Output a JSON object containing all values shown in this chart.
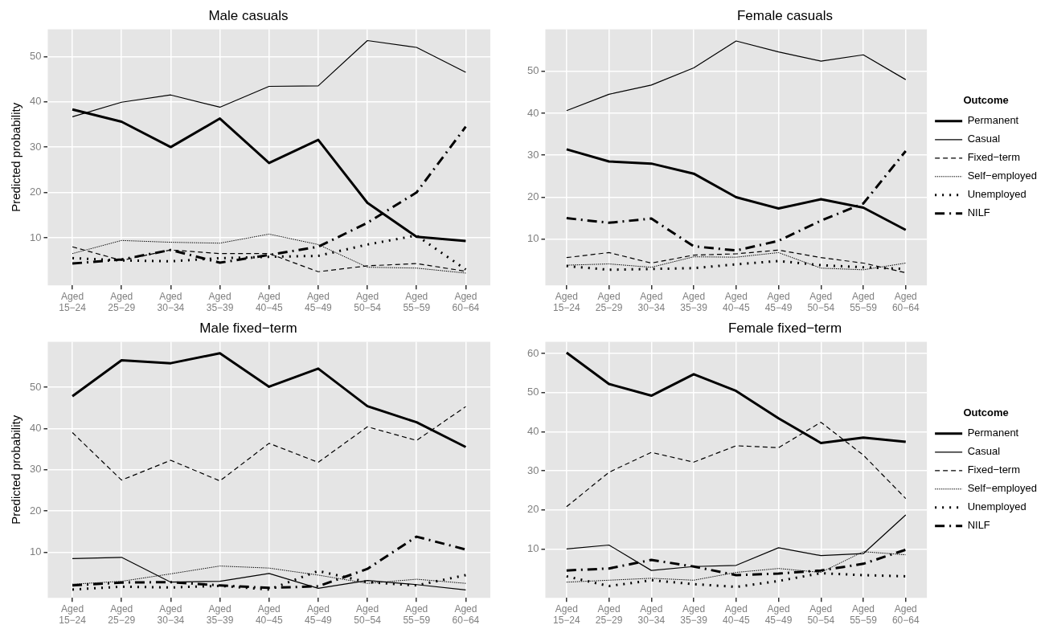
{
  "chart_data": [
    {
      "type": "line",
      "title": "Male casuals",
      "ylabel": "Predicted probability",
      "categories": [
        "Aged\n15−24",
        "Aged\n25−29",
        "Aged\n30−34",
        "Aged\n35−39",
        "Aged\n40−45",
        "Aged\n45−49",
        "Aged\n50−54",
        "Aged\n55−59",
        "Aged\n60−64"
      ],
      "ylim": [
        -0.5,
        56
      ],
      "yticks": [
        10,
        20,
        30,
        40,
        50
      ],
      "grid": true,
      "legend": false,
      "series": [
        {
          "color": "#000000",
          "line_style": "solid",
          "values": [
            38.3,
            35.6,
            30,
            36.3,
            26.5,
            31.6,
            17.7,
            10.2,
            9.3
          ]
        },
        {
          "color": "#000000",
          "line_style": "solid",
          "values": [
            36.7,
            39.9,
            41.5,
            38.8,
            43.4,
            43.5,
            53.5,
            52,
            46.5
          ]
        },
        {
          "color": "#000000",
          "line_style": "dashed",
          "values": [
            8,
            5,
            7.3,
            6.5,
            6.5,
            2.5,
            3.8,
            4.3,
            2.6
          ]
        },
        {
          "color": "#000000",
          "line_style": "dotted",
          "values": [
            6.5,
            9.4,
            9,
            8.8,
            10.8,
            8.5,
            3.5,
            3.3,
            2.2
          ]
        },
        {
          "color": "#000000",
          "line_style": "dotted",
          "values": [
            5.5,
            5,
            4.8,
            5.5,
            5.8,
            6,
            8.5,
            10.5,
            3
          ]
        },
        {
          "color": "#000000",
          "line_style": "dashdot",
          "values": [
            4.3,
            5.2,
            7.3,
            4.5,
            6.2,
            8,
            13.3,
            20,
            34.5
          ]
        }
      ]
    },
    {
      "type": "line",
      "title": "Female casuals",
      "legend_title": "Outcome",
      "categories": [
        "Aged\n15−24",
        "Aged\n25−29",
        "Aged\n30−34",
        "Aged\n35−39",
        "Aged\n40−45",
        "Aged\n45−49",
        "Aged\n50−54",
        "Aged\n55−59",
        "Aged\n60−64"
      ],
      "ylim": [
        -1,
        60
      ],
      "yticks": [
        10,
        20,
        30,
        40,
        50
      ],
      "grid": true,
      "legend": "right",
      "series": [
        {
          "name": "Permanent",
          "color": "#000000",
          "line_style": "solid",
          "values": [
            31.4,
            28.5,
            28,
            25.6,
            20,
            17.3,
            19.5,
            17.5,
            12.2
          ]
        },
        {
          "name": "Casual",
          "color": "#000000",
          "line_style": "solid",
          "values": [
            40.6,
            44.5,
            46.7,
            50.8,
            57.2,
            54.6,
            52.4,
            53.9,
            48
          ]
        },
        {
          "name": "Fixed−term",
          "color": "#000000",
          "line_style": "dashed",
          "values": [
            5.6,
            6.8,
            4.3,
            6.2,
            6.5,
            7.4,
            5.6,
            4.3,
            2
          ]
        },
        {
          "name": "Self−employed",
          "color": "#000000",
          "line_style": "dotted",
          "values": [
            3.8,
            4.1,
            3.3,
            5.8,
            5.7,
            6.8,
            3.1,
            2.7,
            4.3
          ]
        },
        {
          "name": "Unemployed",
          "color": "#000000",
          "line_style": "dotted",
          "values": [
            3.6,
            2.7,
            2.9,
            3.1,
            4,
            4.8,
            3.8,
            3.3,
            2.9
          ]
        },
        {
          "name": "NILF",
          "color": "#000000",
          "line_style": "dashdot",
          "values": [
            15,
            13.9,
            14.9,
            8.3,
            7.3,
            9.6,
            14.4,
            18.5,
            31
          ]
        }
      ]
    },
    {
      "type": "line",
      "title": "Male fixed−term",
      "ylabel": "Predicted probability",
      "categories": [
        "Aged\n15−24",
        "Aged\n25−29",
        "Aged\n30−34",
        "Aged\n35−39",
        "Aged\n40−45",
        "Aged\n45−49",
        "Aged\n50−54",
        "Aged\n55−59",
        "Aged\n60−64"
      ],
      "ylim": [
        -1,
        61
      ],
      "yticks": [
        10,
        20,
        30,
        40,
        50
      ],
      "grid": true,
      "legend": false,
      "series": [
        {
          "color": "#000000",
          "line_style": "solid",
          "values": [
            47.8,
            56.5,
            55.8,
            58.2,
            50.1,
            54.5,
            45.4,
            41.5,
            35.5
          ]
        },
        {
          "color": "#000000",
          "line_style": "solid",
          "values": [
            8.5,
            8.8,
            2.8,
            3,
            4.9,
            1.3,
            3.2,
            2.2,
            0.9
          ]
        },
        {
          "color": "#000000",
          "line_style": "dashed",
          "values": [
            39,
            27.5,
            32.3,
            27.3,
            36.4,
            31.8,
            40.4,
            37.1,
            45.3
          ]
        },
        {
          "color": "#000000",
          "line_style": "dotted",
          "values": [
            2.3,
            3,
            4.8,
            6.7,
            6.2,
            4.5,
            2.5,
            3.5,
            2.5
          ]
        },
        {
          "color": "#000000",
          "line_style": "dotted",
          "values": [
            1,
            1.7,
            1.5,
            1.9,
            1,
            5.5,
            2.8,
            2,
            4.5
          ]
        },
        {
          "color": "#000000",
          "line_style": "dashdot",
          "values": [
            2,
            2.7,
            2.8,
            2,
            1.4,
            1.8,
            6,
            13.8,
            10.7
          ]
        }
      ]
    },
    {
      "type": "line",
      "title": "Female fixed−term",
      "legend_title": "Outcome",
      "categories": [
        "Aged\n15−24",
        "Aged\n25−29",
        "Aged\n30−34",
        "Aged\n35−39",
        "Aged\n40−45",
        "Aged\n45−49",
        "Aged\n50−54",
        "Aged\n55−59",
        "Aged\n60−64"
      ],
      "ylim": [
        -2.5,
        63
      ],
      "yticks": [
        10,
        20,
        30,
        40,
        50,
        60
      ],
      "grid": true,
      "legend": "right",
      "series": [
        {
          "name": "Permanent",
          "color": "#000000",
          "line_style": "solid",
          "values": [
            60.2,
            52.2,
            49.2,
            54.7,
            50.4,
            43.4,
            37.1,
            38.5,
            37.4
          ]
        },
        {
          "name": "Casual",
          "color": "#000000",
          "line_style": "solid",
          "values": [
            10,
            11,
            4.5,
            5.5,
            5.8,
            10.3,
            8.3,
            8.8,
            18.7
          ]
        },
        {
          "name": "Fixed−term",
          "color": "#000000",
          "line_style": "dashed",
          "values": [
            20.8,
            29.6,
            34.7,
            32.2,
            36.4,
            35.9,
            42.4,
            34,
            22.9
          ]
        },
        {
          "name": "Self−employed",
          "color": "#000000",
          "line_style": "dotted",
          "values": [
            1.5,
            2,
            2.5,
            2,
            4,
            5,
            4,
            9.3,
            8.5
          ]
        },
        {
          "name": "Unemployed",
          "color": "#000000",
          "line_style": "dotted",
          "values": [
            3,
            0.5,
            2,
            1,
            0.3,
            1.8,
            3.8,
            3.3,
            3
          ]
        },
        {
          "name": "NILF",
          "color": "#000000",
          "line_style": "dashdot",
          "values": [
            4.5,
            5,
            7.2,
            5.5,
            3.3,
            3.7,
            4.5,
            6.2,
            9.8
          ]
        }
      ]
    }
  ]
}
